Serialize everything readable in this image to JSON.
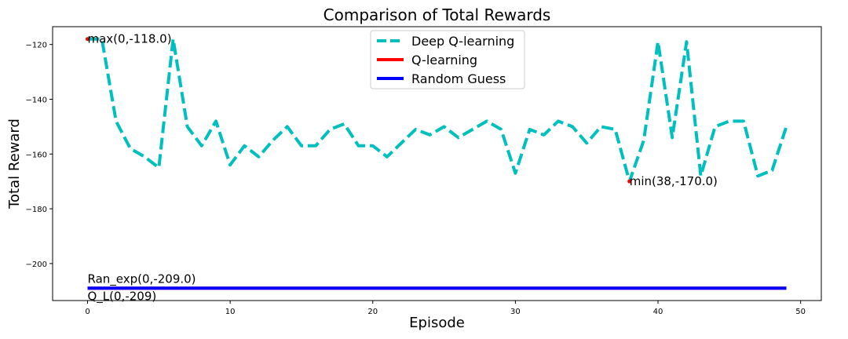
{
  "chart_data": {
    "type": "line",
    "title": "Comparison of Total Rewards",
    "xlabel": "Episode",
    "ylabel": "Total Reward",
    "xlim": [
      -2.45,
      51.45
    ],
    "ylim": [
      -213.5,
      -113.5
    ],
    "xticks": [
      0,
      10,
      20,
      30,
      40,
      50
    ],
    "yticks": [
      -200,
      -180,
      -160,
      -140,
      -120
    ],
    "grid": false,
    "legend_position": "top-center",
    "series": [
      {
        "name": "Deep Q-learning",
        "color": "#00bfbf",
        "style": "dashed",
        "x": [
          0,
          1,
          2,
          3,
          4,
          5,
          6,
          7,
          8,
          9,
          10,
          11,
          12,
          13,
          14,
          15,
          16,
          17,
          18,
          19,
          20,
          21,
          22,
          23,
          24,
          25,
          26,
          27,
          28,
          29,
          30,
          31,
          32,
          33,
          34,
          35,
          36,
          37,
          38,
          39,
          40,
          41,
          42,
          43,
          44,
          45,
          46,
          47,
          48,
          49
        ],
        "values": [
          -118,
          -118,
          -148,
          -158,
          -161,
          -165,
          -118,
          -150,
          -157,
          -148,
          -164,
          -157,
          -161,
          -155,
          -150,
          -157,
          -157,
          -151,
          -149,
          -157,
          -157,
          -161,
          -156,
          -151,
          -153,
          -150,
          -154,
          -151,
          -148,
          -151,
          -167,
          -151,
          -153,
          -148,
          -150,
          -156,
          -150,
          -151,
          -170,
          -155,
          -119,
          -154,
          -119,
          -168,
          -150,
          -148,
          -148,
          -168,
          -166,
          -150
        ]
      },
      {
        "name": "Q-learning",
        "color": "#ff0000",
        "style": "solid",
        "x": [
          0,
          49
        ],
        "values": [
          -209,
          -209
        ]
      },
      {
        "name": "Random Guess",
        "color": "#0000ff",
        "style": "solid",
        "x": [
          0,
          49
        ],
        "values": [
          -209,
          -209
        ]
      }
    ],
    "annotations": [
      {
        "text": "max(0,-118.0)",
        "x": 0,
        "y": -118,
        "marker": true
      },
      {
        "text": "min(38,-170.0)",
        "x": 38,
        "y": -170,
        "marker": true
      },
      {
        "text": "Ran_exp(0,-209.0)",
        "x": 0,
        "y": -209,
        "marker": false,
        "placement": "above"
      },
      {
        "text": "Q_L(0,-209)",
        "x": 0,
        "y": -209,
        "marker": false,
        "placement": "below"
      }
    ]
  }
}
